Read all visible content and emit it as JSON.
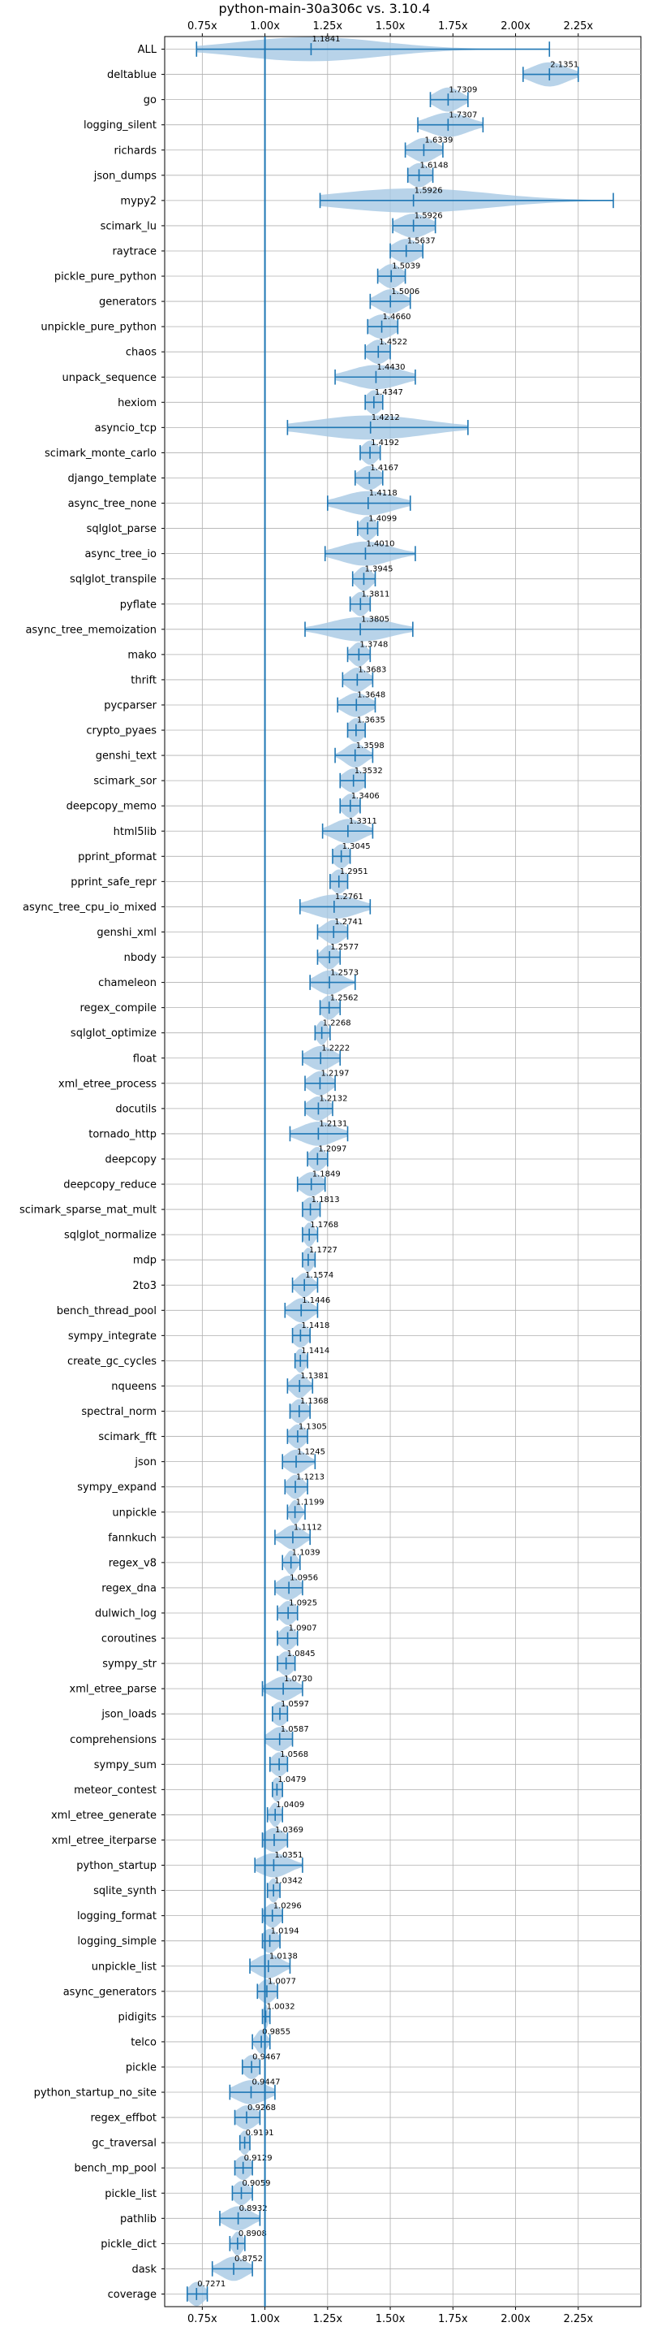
{
  "chart_data": {
    "type": "violin",
    "title": "python-main-30a306c vs. 3.10.4",
    "xlabel": "",
    "ylabel": "",
    "xlim": [
      0.6,
      2.5
    ],
    "xticks": [
      0.75,
      1.0,
      1.25,
      1.5,
      1.75,
      2.0,
      2.25
    ],
    "xtick_labels": [
      "0.75x",
      "1.00x",
      "1.25x",
      "1.50x",
      "1.75x",
      "2.00x",
      "2.25x"
    ],
    "reference_line": 1.0,
    "grid": true,
    "colors": {
      "line": "#1f77b4",
      "violin": "#a6c8e4"
    },
    "benchmarks": [
      {
        "name": "ALL",
        "value": 1.1841,
        "min": 0.7271,
        "max": 2.1351,
        "spread": 0.28
      },
      {
        "name": "deltablue",
        "value": 2.1351,
        "min": 2.03,
        "max": 2.25,
        "spread": 0.07
      },
      {
        "name": "go",
        "value": 1.7309,
        "min": 1.66,
        "max": 1.81,
        "spread": 0.05
      },
      {
        "name": "logging_silent",
        "value": 1.7307,
        "min": 1.61,
        "max": 1.87,
        "spread": 0.08
      },
      {
        "name": "richards",
        "value": 1.6339,
        "min": 1.56,
        "max": 1.71,
        "spread": 0.05
      },
      {
        "name": "json_dumps",
        "value": 1.6148,
        "min": 1.57,
        "max": 1.67,
        "spread": 0.04
      },
      {
        "name": "mypy2",
        "value": 1.5926,
        "min": 1.22,
        "max": 2.39,
        "spread": 0.3
      },
      {
        "name": "scimark_lu",
        "value": 1.5926,
        "min": 1.51,
        "max": 1.68,
        "spread": 0.06
      },
      {
        "name": "raytrace",
        "value": 1.5637,
        "min": 1.5,
        "max": 1.63,
        "spread": 0.05
      },
      {
        "name": "pickle_pure_python",
        "value": 1.5039,
        "min": 1.45,
        "max": 1.56,
        "spread": 0.04
      },
      {
        "name": "generators",
        "value": 1.5006,
        "min": 1.42,
        "max": 1.58,
        "spread": 0.05
      },
      {
        "name": "unpickle_pure_python",
        "value": 1.466,
        "min": 1.41,
        "max": 1.53,
        "spread": 0.05
      },
      {
        "name": "chaos",
        "value": 1.4522,
        "min": 1.4,
        "max": 1.5,
        "spread": 0.04
      },
      {
        "name": "unpack_sequence",
        "value": 1.443,
        "min": 1.28,
        "max": 1.6,
        "spread": 0.1
      },
      {
        "name": "hexiom",
        "value": 1.4347,
        "min": 1.4,
        "max": 1.47,
        "spread": 0.03
      },
      {
        "name": "asyncio_tcp",
        "value": 1.4212,
        "min": 1.09,
        "max": 1.81,
        "spread": 0.22
      },
      {
        "name": "scimark_monte_carlo",
        "value": 1.4192,
        "min": 1.38,
        "max": 1.46,
        "spread": 0.03
      },
      {
        "name": "django_template",
        "value": 1.4167,
        "min": 1.36,
        "max": 1.47,
        "spread": 0.04
      },
      {
        "name": "async_tree_none",
        "value": 1.4118,
        "min": 1.25,
        "max": 1.58,
        "spread": 0.1
      },
      {
        "name": "sqlglot_parse",
        "value": 1.4099,
        "min": 1.37,
        "max": 1.45,
        "spread": 0.03
      },
      {
        "name": "async_tree_io",
        "value": 1.401,
        "min": 1.24,
        "max": 1.6,
        "spread": 0.1
      },
      {
        "name": "sqlglot_transpile",
        "value": 1.3945,
        "min": 1.35,
        "max": 1.44,
        "spread": 0.03
      },
      {
        "name": "pyflate",
        "value": 1.3811,
        "min": 1.34,
        "max": 1.42,
        "spread": 0.03
      },
      {
        "name": "async_tree_memoization",
        "value": 1.3805,
        "min": 1.16,
        "max": 1.59,
        "spread": 0.12
      },
      {
        "name": "mako",
        "value": 1.3748,
        "min": 1.33,
        "max": 1.42,
        "spread": 0.03
      },
      {
        "name": "thrift",
        "value": 1.3683,
        "min": 1.31,
        "max": 1.43,
        "spread": 0.04
      },
      {
        "name": "pycparser",
        "value": 1.3648,
        "min": 1.29,
        "max": 1.44,
        "spread": 0.05
      },
      {
        "name": "crypto_pyaes",
        "value": 1.3635,
        "min": 1.33,
        "max": 1.4,
        "spread": 0.03
      },
      {
        "name": "genshi_text",
        "value": 1.3598,
        "min": 1.28,
        "max": 1.43,
        "spread": 0.04
      },
      {
        "name": "scimark_sor",
        "value": 1.3532,
        "min": 1.3,
        "max": 1.4,
        "spread": 0.04
      },
      {
        "name": "deepcopy_memo",
        "value": 1.3406,
        "min": 1.3,
        "max": 1.38,
        "spread": 0.03
      },
      {
        "name": "html5lib",
        "value": 1.3311,
        "min": 1.23,
        "max": 1.43,
        "spread": 0.06
      },
      {
        "name": "pprint_pformat",
        "value": 1.3045,
        "min": 1.27,
        "max": 1.34,
        "spread": 0.03
      },
      {
        "name": "pprint_safe_repr",
        "value": 1.2951,
        "min": 1.26,
        "max": 1.33,
        "spread": 0.03
      },
      {
        "name": "async_tree_cpu_io_mixed",
        "value": 1.2761,
        "min": 1.14,
        "max": 1.42,
        "spread": 0.09
      },
      {
        "name": "genshi_xml",
        "value": 1.2741,
        "min": 1.21,
        "max": 1.33,
        "spread": 0.04
      },
      {
        "name": "nbody",
        "value": 1.2577,
        "min": 1.21,
        "max": 1.3,
        "spread": 0.03
      },
      {
        "name": "chameleon",
        "value": 1.2573,
        "min": 1.18,
        "max": 1.36,
        "spread": 0.05
      },
      {
        "name": "regex_compile",
        "value": 1.2562,
        "min": 1.22,
        "max": 1.3,
        "spread": 0.03
      },
      {
        "name": "sqlglot_optimize",
        "value": 1.2268,
        "min": 1.2,
        "max": 1.26,
        "spread": 0.02
      },
      {
        "name": "float",
        "value": 1.2222,
        "min": 1.15,
        "max": 1.3,
        "spread": 0.05
      },
      {
        "name": "xml_etree_process",
        "value": 1.2197,
        "min": 1.16,
        "max": 1.28,
        "spread": 0.04
      },
      {
        "name": "docutils",
        "value": 1.2132,
        "min": 1.16,
        "max": 1.27,
        "spread": 0.04
      },
      {
        "name": "tornado_http",
        "value": 1.2131,
        "min": 1.1,
        "max": 1.33,
        "spread": 0.07
      },
      {
        "name": "deepcopy",
        "value": 1.2097,
        "min": 1.17,
        "max": 1.25,
        "spread": 0.03
      },
      {
        "name": "deepcopy_reduce",
        "value": 1.1849,
        "min": 1.13,
        "max": 1.24,
        "spread": 0.04
      },
      {
        "name": "scimark_sparse_mat_mult",
        "value": 1.1813,
        "min": 1.15,
        "max": 1.22,
        "spread": 0.03
      },
      {
        "name": "sqlglot_normalize",
        "value": 1.1768,
        "min": 1.15,
        "max": 1.21,
        "spread": 0.02
      },
      {
        "name": "mdp",
        "value": 1.1727,
        "min": 1.15,
        "max": 1.2,
        "spread": 0.02
      },
      {
        "name": "2to3",
        "value": 1.1574,
        "min": 1.11,
        "max": 1.21,
        "spread": 0.03
      },
      {
        "name": "bench_thread_pool",
        "value": 1.1446,
        "min": 1.08,
        "max": 1.21,
        "spread": 0.04
      },
      {
        "name": "sympy_integrate",
        "value": 1.1418,
        "min": 1.11,
        "max": 1.18,
        "spread": 0.03
      },
      {
        "name": "create_gc_cycles",
        "value": 1.1414,
        "min": 1.12,
        "max": 1.17,
        "spread": 0.02
      },
      {
        "name": "nqueens",
        "value": 1.1381,
        "min": 1.09,
        "max": 1.19,
        "spread": 0.03
      },
      {
        "name": "spectral_norm",
        "value": 1.1368,
        "min": 1.1,
        "max": 1.18,
        "spread": 0.03
      },
      {
        "name": "scimark_fft",
        "value": 1.1305,
        "min": 1.09,
        "max": 1.17,
        "spread": 0.03
      },
      {
        "name": "json",
        "value": 1.1245,
        "min": 1.07,
        "max": 1.2,
        "spread": 0.04
      },
      {
        "name": "sympy_expand",
        "value": 1.1213,
        "min": 1.08,
        "max": 1.17,
        "spread": 0.03
      },
      {
        "name": "unpickle",
        "value": 1.1199,
        "min": 1.09,
        "max": 1.16,
        "spread": 0.02
      },
      {
        "name": "fannkuch",
        "value": 1.1112,
        "min": 1.04,
        "max": 1.18,
        "spread": 0.04
      },
      {
        "name": "regex_v8",
        "value": 1.1039,
        "min": 1.07,
        "max": 1.14,
        "spread": 0.02
      },
      {
        "name": "regex_dna",
        "value": 1.0956,
        "min": 1.04,
        "max": 1.15,
        "spread": 0.04
      },
      {
        "name": "dulwich_log",
        "value": 1.0925,
        "min": 1.05,
        "max": 1.13,
        "spread": 0.03
      },
      {
        "name": "coroutines",
        "value": 1.0907,
        "min": 1.05,
        "max": 1.13,
        "spread": 0.03
      },
      {
        "name": "sympy_str",
        "value": 1.0845,
        "min": 1.05,
        "max": 1.12,
        "spread": 0.03
      },
      {
        "name": "xml_etree_parse",
        "value": 1.073,
        "min": 0.99,
        "max": 1.15,
        "spread": 0.05
      },
      {
        "name": "json_loads",
        "value": 1.0597,
        "min": 1.03,
        "max": 1.09,
        "spread": 0.03
      },
      {
        "name": "comprehensions",
        "value": 1.0587,
        "min": 1.0,
        "max": 1.11,
        "spread": 0.04
      },
      {
        "name": "sympy_sum",
        "value": 1.0568,
        "min": 1.02,
        "max": 1.09,
        "spread": 0.03
      },
      {
        "name": "meteor_contest",
        "value": 1.0479,
        "min": 1.03,
        "max": 1.07,
        "spread": 0.02
      },
      {
        "name": "xml_etree_generate",
        "value": 1.0409,
        "min": 1.01,
        "max": 1.07,
        "spread": 0.02
      },
      {
        "name": "xml_etree_iterparse",
        "value": 1.0369,
        "min": 0.99,
        "max": 1.09,
        "spread": 0.04
      },
      {
        "name": "python_startup",
        "value": 1.0351,
        "min": 0.96,
        "max": 1.15,
        "spread": 0.06
      },
      {
        "name": "sqlite_synth",
        "value": 1.0342,
        "min": 1.01,
        "max": 1.06,
        "spread": 0.02
      },
      {
        "name": "logging_format",
        "value": 1.0296,
        "min": 0.99,
        "max": 1.07,
        "spread": 0.03
      },
      {
        "name": "logging_simple",
        "value": 1.0194,
        "min": 0.99,
        "max": 1.06,
        "spread": 0.03
      },
      {
        "name": "unpickle_list",
        "value": 1.0138,
        "min": 0.94,
        "max": 1.1,
        "spread": 0.05
      },
      {
        "name": "async_generators",
        "value": 1.0077,
        "min": 0.97,
        "max": 1.05,
        "spread": 0.03
      },
      {
        "name": "pidigits",
        "value": 1.0032,
        "min": 0.99,
        "max": 1.02,
        "spread": 0.01
      },
      {
        "name": "telco",
        "value": 0.9855,
        "min": 0.95,
        "max": 1.02,
        "spread": 0.02
      },
      {
        "name": "pickle",
        "value": 0.9467,
        "min": 0.91,
        "max": 0.98,
        "spread": 0.03
      },
      {
        "name": "python_startup_no_site",
        "value": 0.9447,
        "min": 0.86,
        "max": 1.04,
        "spread": 0.06
      },
      {
        "name": "regex_effbot",
        "value": 0.9268,
        "min": 0.88,
        "max": 0.98,
        "spread": 0.04
      },
      {
        "name": "gc_traversal",
        "value": 0.9191,
        "min": 0.9,
        "max": 0.94,
        "spread": 0.02
      },
      {
        "name": "bench_mp_pool",
        "value": 0.9129,
        "min": 0.88,
        "max": 0.95,
        "spread": 0.03
      },
      {
        "name": "pickle_list",
        "value": 0.9059,
        "min": 0.87,
        "max": 0.95,
        "spread": 0.03
      },
      {
        "name": "pathlib",
        "value": 0.8932,
        "min": 0.82,
        "max": 0.98,
        "spread": 0.05
      },
      {
        "name": "pickle_dict",
        "value": 0.8908,
        "min": 0.86,
        "max": 0.92,
        "spread": 0.02
      },
      {
        "name": "dask",
        "value": 0.8752,
        "min": 0.79,
        "max": 0.95,
        "spread": 0.05
      },
      {
        "name": "coverage",
        "value": 0.7271,
        "min": 0.69,
        "max": 0.77,
        "spread": 0.03
      }
    ]
  }
}
